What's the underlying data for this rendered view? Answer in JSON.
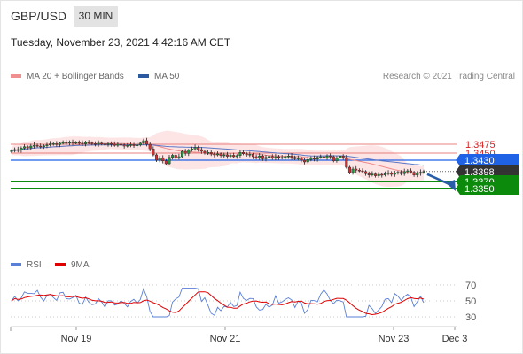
{
  "header": {
    "symbol": "GBP/USD",
    "timeframe": "30 MIN"
  },
  "timestamp": "Tuesday, November 23, 2021 4:42:16 AM CET",
  "legend": {
    "main": [
      {
        "label": "MA 20 + Bollinger Bands",
        "color": "#f08f8f"
      },
      {
        "label": "MA 50",
        "color": "#2c5aa0"
      }
    ],
    "rsi": [
      {
        "label": "RSI",
        "color": "#5a7fd6"
      },
      {
        "label": "9MA",
        "color": "#e00000"
      }
    ]
  },
  "credit": "Research © 2021 Trading Central",
  "chart_data": [
    {
      "type": "candlestick",
      "x_ticks": [
        "Nov 19",
        "Nov 21",
        "Nov 23",
        "Dec 3"
      ],
      "y_range": [
        1.3335,
        1.3515
      ],
      "current_price": "1.3398",
      "levels": [
        {
          "value": 1.3475,
          "label": "1.3475",
          "kind": "resistance-line",
          "color": "#e88080"
        },
        {
          "value": 1.345,
          "label": "1.3450",
          "kind": "resistance-line",
          "color": "#e88080"
        },
        {
          "value": 1.343,
          "label": "1.3430",
          "kind": "pivot",
          "color": "#1f62e6"
        },
        {
          "value": 1.3398,
          "label": "1.3398",
          "kind": "current",
          "color": "#333333"
        },
        {
          "value": 1.337,
          "label": "1.3370",
          "kind": "support",
          "color": "#0b8a0b"
        },
        {
          "value": 1.335,
          "label": "1.3350",
          "kind": "support",
          "color": "#0b8a0b"
        }
      ],
      "forecast_arrow": {
        "from": 1.3398,
        "to": 1.3355,
        "color": "#2a5da8"
      },
      "candles_close": [
        1.3457,
        1.346,
        1.3458,
        1.3464,
        1.3468,
        1.3465,
        1.347,
        1.3472,
        1.347,
        1.3468,
        1.3471,
        1.3473,
        1.3476,
        1.3477,
        1.3474,
        1.3478,
        1.348,
        1.3478,
        1.3481,
        1.3479,
        1.348,
        1.3478,
        1.3476,
        1.348,
        1.3479,
        1.3477,
        1.3475,
        1.3478,
        1.3476,
        1.3474,
        1.3477,
        1.3475,
        1.3472,
        1.3475,
        1.3473,
        1.347,
        1.3472,
        1.3474,
        1.3471,
        1.3473,
        1.3478,
        1.3485,
        1.3475,
        1.3462,
        1.3445,
        1.343,
        1.3436,
        1.3428,
        1.342,
        1.3438,
        1.3444,
        1.3436,
        1.344,
        1.3455,
        1.3449,
        1.3458,
        1.3462,
        1.3466,
        1.346,
        1.3455,
        1.345,
        1.3452,
        1.3448,
        1.3445,
        1.3448,
        1.3443,
        1.3445,
        1.3441,
        1.3444,
        1.344,
        1.3443,
        1.3452,
        1.3448,
        1.3445,
        1.3447,
        1.344,
        1.3436,
        1.3442,
        1.3434,
        1.3438,
        1.3441,
        1.3436,
        1.344,
        1.3438,
        1.3436,
        1.344,
        1.3442,
        1.3438,
        1.3434,
        1.3436,
        1.343,
        1.3425,
        1.3432,
        1.3436,
        1.3433,
        1.3438,
        1.344,
        1.3437,
        1.3442,
        1.344,
        1.3428,
        1.3436,
        1.3442,
        1.3438,
        1.341,
        1.3395,
        1.3405,
        1.3402,
        1.34,
        1.3398,
        1.3392,
        1.3388,
        1.3391,
        1.3386,
        1.339,
        1.3388,
        1.3392,
        1.3394,
        1.339,
        1.3393,
        1.3396,
        1.3392,
        1.3398,
        1.34,
        1.3396,
        1.3388,
        1.3393,
        1.3396,
        1.3398
      ]
    },
    {
      "type": "line",
      "name": "RSI",
      "y_ticks": [
        "70",
        "50",
        "30"
      ],
      "y_range": [
        20,
        80
      ]
    }
  ]
}
